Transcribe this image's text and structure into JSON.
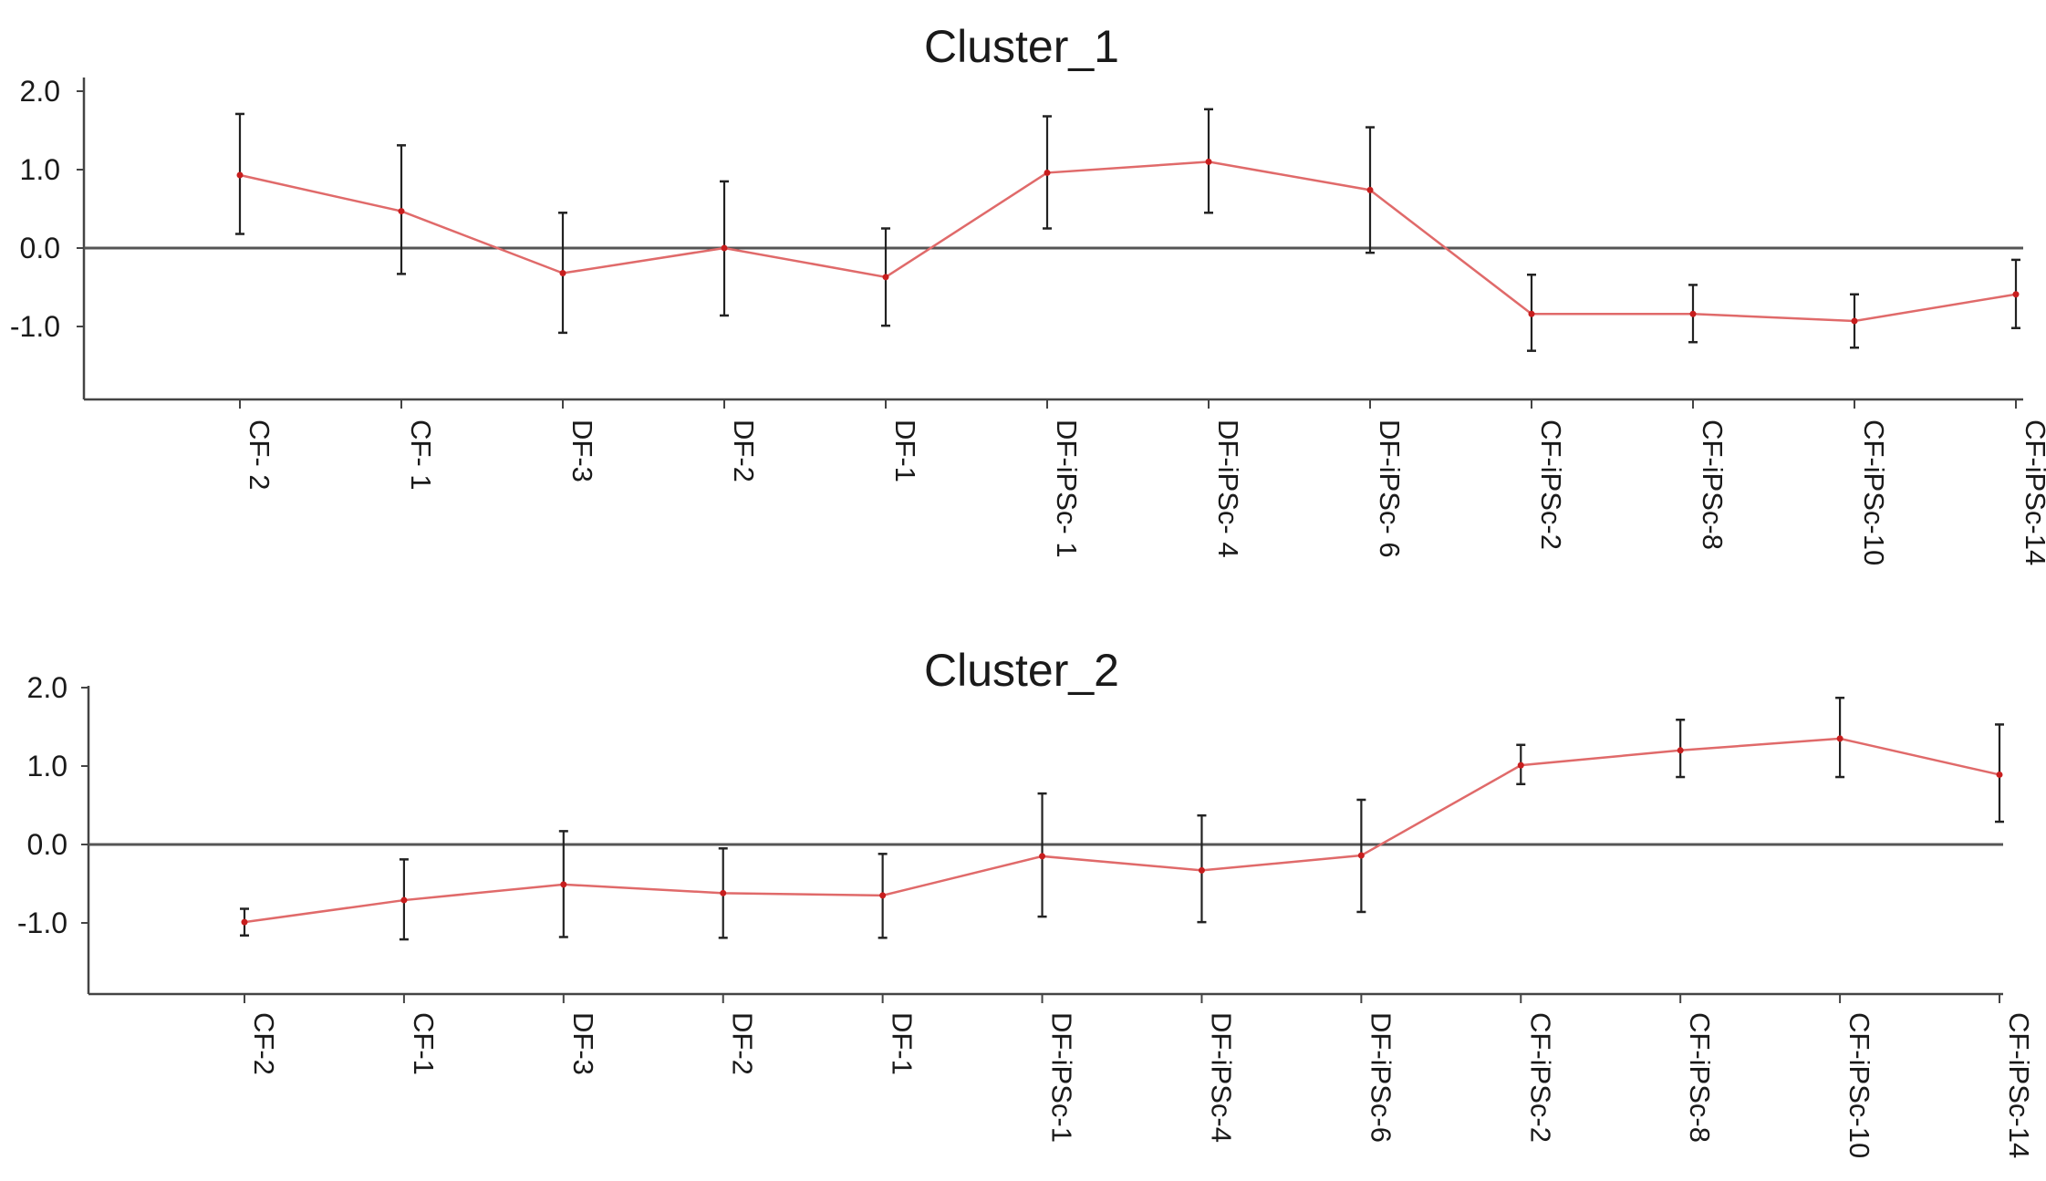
{
  "chart_data": [
    {
      "type": "line",
      "title": "Cluster_1",
      "xlabel": "",
      "ylabel": "",
      "ylim": [
        -1.9,
        2.2
      ],
      "yticks": [
        "2.0",
        "1.0",
        "0.0",
        "-1.0"
      ],
      "yticks_values": [
        2.0,
        1.0,
        0.0,
        -1.0
      ],
      "categories": [
        "CF- 2",
        "CF- 1",
        "DF-3",
        "DF-2",
        "DF-1",
        "DF-iPSc- 1",
        "DF-iPSc- 4",
        "DF-iPSc- 6",
        "CF-iPSc-2",
        "CF-iPSc-8",
        "CF-iPSc-10",
        "CF-iPSc-14"
      ],
      "values": [
        0.93,
        0.47,
        -0.32,
        0.0,
        -0.37,
        0.96,
        1.1,
        0.74,
        -0.84,
        -0.84,
        -0.93,
        -0.59
      ],
      "err_low": [
        0.18,
        -0.33,
        -1.08,
        -0.86,
        -0.99,
        0.25,
        0.45,
        -0.06,
        -1.31,
        -1.2,
        -1.27,
        -1.02
      ],
      "err_high": [
        1.71,
        1.31,
        0.45,
        0.85,
        0.25,
        1.68,
        1.77,
        1.54,
        -0.34,
        -0.47,
        -0.59,
        -0.15
      ],
      "line_color": "#e06a6a",
      "error_color": "#222222",
      "grid": false
    },
    {
      "type": "line",
      "title": "Cluster_2",
      "xlabel": "",
      "ylabel": "",
      "ylim": [
        -1.9,
        2.2
      ],
      "yticks": [
        "2.0",
        "1.0",
        "0.0",
        "-1.0"
      ],
      "yticks_values": [
        2.0,
        1.0,
        0.0,
        -1.0
      ],
      "categories": [
        "CF-2",
        "CF-1",
        "DF-3",
        "DF-2",
        "DF-1",
        "DF-iPSc-1",
        "DF-iPSc-4",
        "DF-iPSc-6",
        "CF-iPSc-2",
        "CF-iPSc-8",
        "CF-iPSc-10",
        "CF-iPSc-14"
      ],
      "values": [
        -0.99,
        -0.71,
        -0.51,
        -0.62,
        -0.65,
        -0.15,
        -0.33,
        -0.14,
        1.01,
        1.2,
        1.35,
        0.89
      ],
      "err_low": [
        -1.16,
        -1.21,
        -1.18,
        -1.19,
        -1.19,
        -0.92,
        -0.99,
        -0.86,
        0.77,
        0.86,
        0.86,
        0.29
      ],
      "err_high": [
        -0.82,
        -0.19,
        0.17,
        -0.05,
        -0.12,
        0.65,
        0.37,
        0.57,
        1.27,
        1.59,
        1.87,
        1.53
      ],
      "line_color": "#e06a6a",
      "error_color": "#222222",
      "grid": false
    }
  ]
}
